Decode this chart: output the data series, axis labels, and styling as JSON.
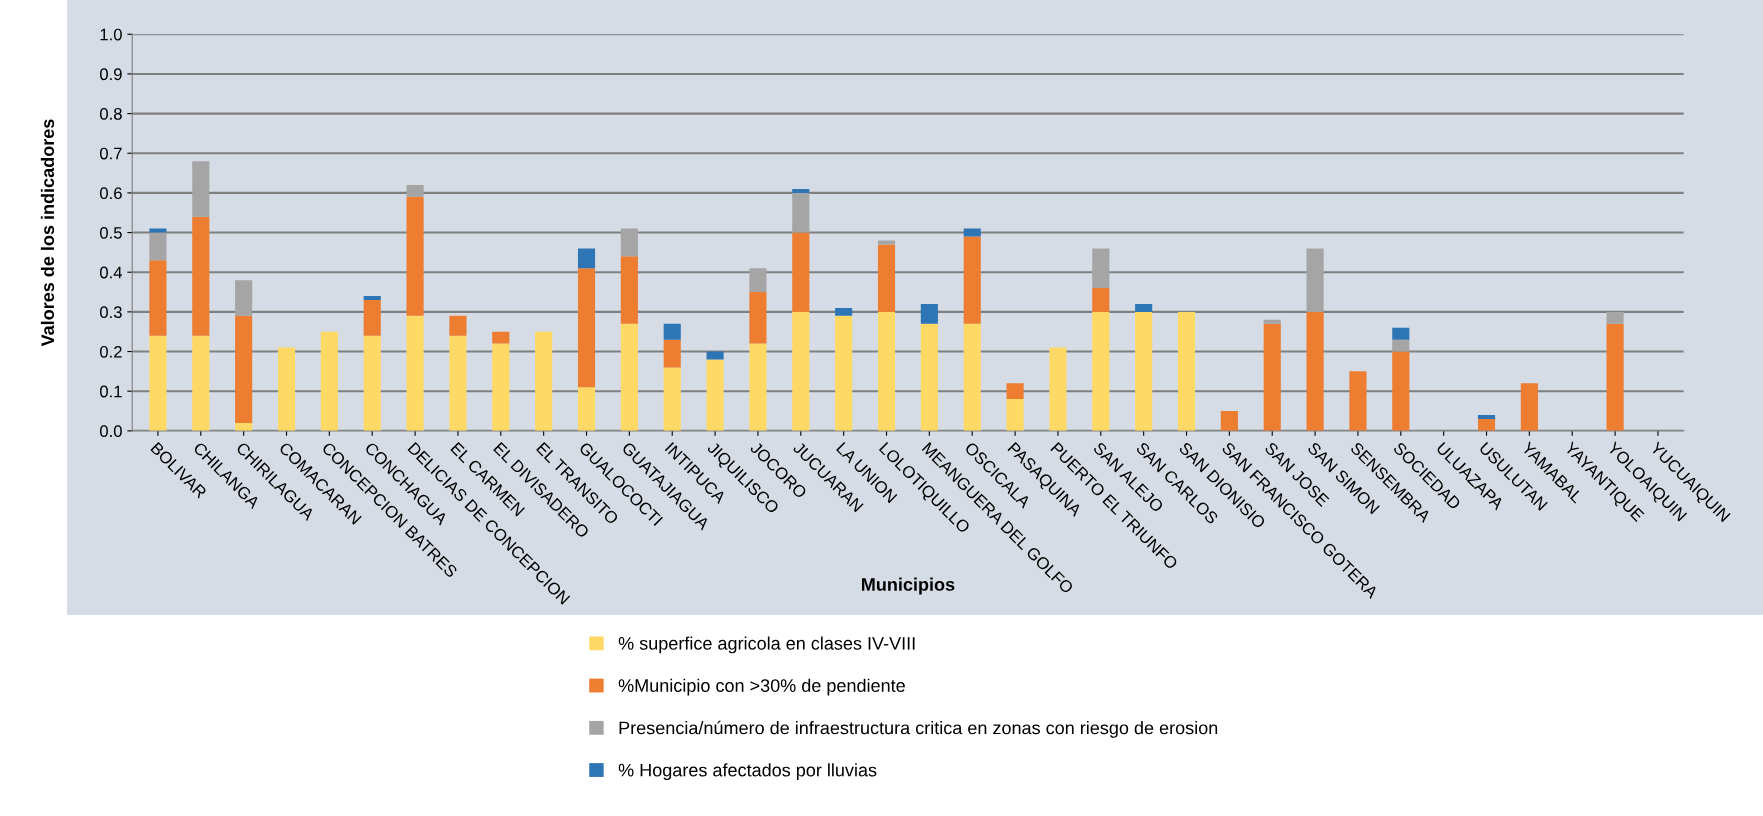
{
  "chart_data": {
    "type": "bar",
    "stacked": true,
    "xlabel": "Municipios",
    "ylabel": "Valores de los indicadores",
    "categories": [
      "BOLIVAR",
      "CHILANGA",
      "CHIRILAGUA",
      "COMACARAN",
      "CONCEPCION BATRES",
      "CONCHAGUA",
      "DELICIAS DE CONCEPCION",
      "EL CARMEN",
      "EL DIVISADERO",
      "EL TRANSITO",
      "GUALOCOCTI",
      "GUATAJIAGUA",
      "INTIPUCA",
      "JIQUILISCO",
      "JOCORO",
      "JUCUARAN",
      "LA UNION",
      "LOLOTIQUILLO",
      "MEANGUERA DEL GOLFO",
      "OSCICALA",
      "PASAQUINA",
      "PUERTO EL TRIUNFO",
      "SAN ALEJO",
      "SAN CARLOS",
      "SAN DIONISIO",
      "SAN FRANCISCO GOTERA",
      "SAN JOSE",
      "SAN SIMON",
      "SENSEMBRA",
      "SOCIEDAD",
      "ULUAZAPA",
      "USULUTAN",
      "YAMABAL",
      "YAYANTIQUE",
      "YOLOAIQUIN",
      "YUCUAIQUIN"
    ],
    "series": [
      {
        "name": "% superfice agricola en clases IV-VIII",
        "color": "#ffd966",
        "values": [
          0.24,
          0.24,
          0.02,
          0.21,
          0.25,
          0.24,
          0.29,
          0.24,
          0.22,
          0.25,
          0.11,
          0.27,
          0.16,
          0.18,
          0.22,
          0.3,
          0.29,
          0.3,
          0.27,
          0.27,
          0.08,
          0.21,
          0.3,
          0.3,
          0.3,
          0,
          0,
          0,
          0,
          0,
          0,
          0,
          0,
          0,
          0,
          0
        ]
      },
      {
        "name": "%Municipio con >30% de pendiente",
        "color": "#ed7d31",
        "values": [
          0.19,
          0.3,
          0.27,
          0,
          0,
          0.09,
          0.3,
          0.05,
          0.03,
          0,
          0.3,
          0.17,
          0.07,
          0,
          0.13,
          0.2,
          0,
          0.17,
          0,
          0.22,
          0.04,
          0,
          0.06,
          0,
          0,
          0.05,
          0.27,
          0.3,
          0.15,
          0.2,
          0,
          0.03,
          0.12,
          0,
          0.27,
          0
        ]
      },
      {
        "name": "Presencia/número de infraestructura critica en zonas con riesgo de erosion",
        "color": "#a5a5a5",
        "values": [
          0.07,
          0.14,
          0.09,
          0,
          0,
          0,
          0.03,
          0,
          0,
          0,
          0,
          0.07,
          0,
          0,
          0.06,
          0.1,
          0,
          0.01,
          0,
          0,
          0,
          0,
          0.1,
          0,
          0,
          0,
          0.01,
          0.16,
          0,
          0.03,
          0,
          0,
          0,
          0,
          0.03,
          0
        ]
      },
      {
        "name": "% Hogares afectados por lluvias",
        "color": "#2e75b6",
        "values": [
          0.01,
          0,
          0,
          0,
          0,
          0.01,
          0,
          0,
          0,
          0,
          0.05,
          0,
          0.04,
          0.02,
          0,
          0.01,
          0.02,
          0,
          0.05,
          0.02,
          0,
          0,
          0,
          0.02,
          0,
          0,
          0,
          0,
          0,
          0.03,
          0,
          0.01,
          0,
          0,
          0,
          0
        ]
      }
    ],
    "ylim": [
      0,
      1.0
    ],
    "yticks": [
      {
        "value": 0,
        "label": "0.0"
      },
      {
        "value": 0.1,
        "label": "0.1"
      },
      {
        "value": 0.2,
        "label": "0.2"
      },
      {
        "value": 0.3,
        "label": "0.3"
      },
      {
        "value": 0.4,
        "label": "0.4"
      },
      {
        "value": 0.5,
        "label": "0.5"
      },
      {
        "value": 0.6,
        "label": "0.6"
      },
      {
        "value": 0.7,
        "label": "0.7"
      },
      {
        "value": 0.8,
        "label": "0.8"
      },
      {
        "value": 0.9,
        "label": "0.9"
      },
      {
        "value": 1.0,
        "label": "1.0"
      }
    ],
    "grid": "y",
    "legend": "bottom"
  }
}
